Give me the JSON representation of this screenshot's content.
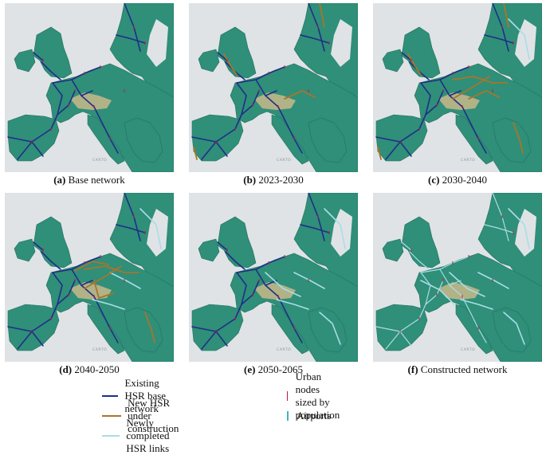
{
  "panels": [
    {
      "id": "a",
      "letter": "(a)",
      "title": "Base network",
      "base": true,
      "orange": [],
      "cyan": []
    },
    {
      "id": "b",
      "letter": "(b)",
      "title": "2023-2030",
      "base": true,
      "orange": [
        "o1",
        "o2",
        "o3",
        "o4"
      ],
      "cyan": []
    },
    {
      "id": "c",
      "letter": "(c)",
      "title": "2030-2040",
      "base": true,
      "orange": [
        "o1",
        "o2",
        "o3",
        "o4",
        "o5",
        "o6",
        "o7"
      ],
      "cyan": [
        "c1"
      ]
    },
    {
      "id": "d",
      "letter": "(d)",
      "title": "2040-2050",
      "base": true,
      "orange": [
        "o5",
        "o6",
        "o7",
        "o8",
        "o9"
      ],
      "cyan": [
        "c1",
        "c2",
        "c3"
      ]
    },
    {
      "id": "e",
      "letter": "(e)",
      "title": "2050-2065",
      "base": true,
      "orange": [],
      "cyan": [
        "c1",
        "c2",
        "c3",
        "c4",
        "c5"
      ]
    },
    {
      "id": "f",
      "letter": "(f)",
      "title": "Constructed network",
      "base": false,
      "orange": [],
      "cyan": [
        "c1",
        "c2",
        "c3",
        "c4",
        "c5",
        "c6"
      ]
    }
  ],
  "map_attribution": "CARTO",
  "colors": {
    "existing": "#1f2f86",
    "new_construction": "#a8752a",
    "completed": "#a9dde6",
    "urban": "#c2183f",
    "airport": "#3ab8c8",
    "sea": "#dfe3e6",
    "land": "#2f8f79",
    "highland": "#c9b98a"
  },
  "legend": {
    "existing_label": "Existing HSR base network",
    "construction_label": "New HSR under construction",
    "completed_label": "Newly completed HSR links",
    "urban_label": "Urban nodes sized by population",
    "airport_label": "Airports"
  }
}
